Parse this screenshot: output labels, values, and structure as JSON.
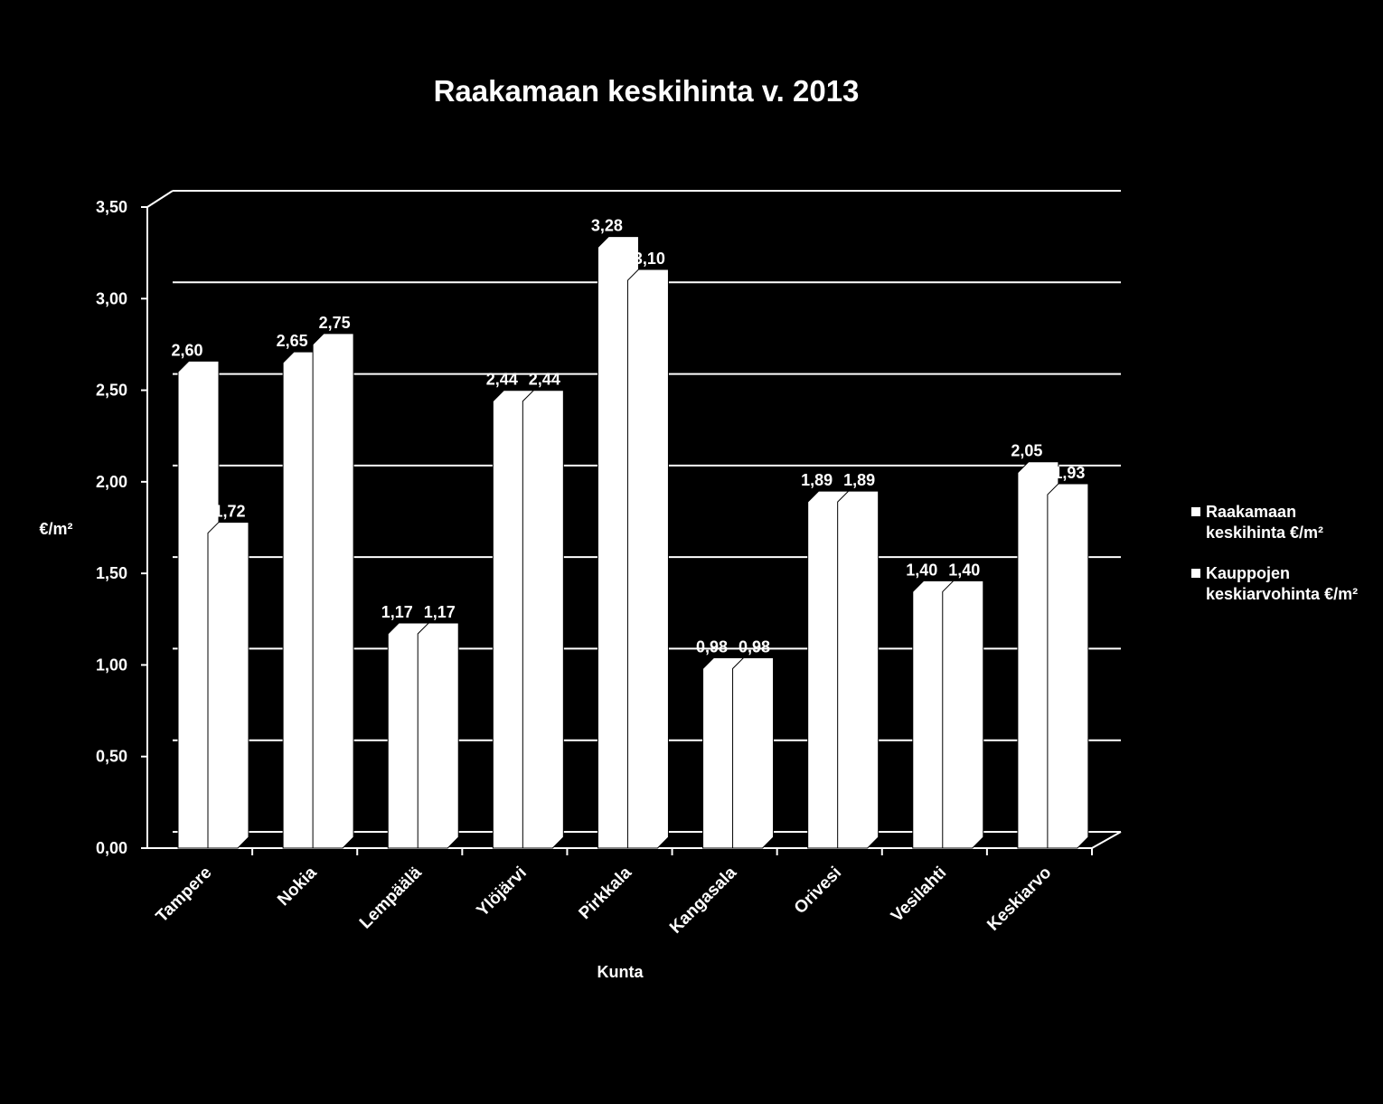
{
  "chart_data": {
    "type": "bar",
    "title": "Raakamaan keskihinta v. 2013",
    "xlabel": "Kunta",
    "ylabel": "€/m²",
    "categories": [
      "Tampere",
      "Nokia",
      "Lempäälä",
      "Ylöjärvi",
      "Pirkkala",
      "Kangasala",
      "Orivesi",
      "Vesilahti",
      "Keskiarvo"
    ],
    "series": [
      {
        "name": "Raakamaan keskihinta €/m²",
        "values": [
          2.6,
          2.65,
          1.17,
          2.44,
          3.28,
          0.98,
          1.89,
          1.4,
          2.05
        ],
        "labels": [
          "2,60",
          "2,65",
          "1,17",
          "2,44",
          "3,28",
          "0,98",
          "1,89",
          "1,40",
          "2,05"
        ]
      },
      {
        "name": "Kauppojen keskiarvohinta €/m²",
        "values": [
          1.72,
          2.75,
          1.17,
          2.44,
          3.1,
          0.98,
          1.89,
          1.4,
          1.93
        ],
        "labels": [
          "1,72",
          "2,75",
          "1,17",
          "2,44",
          "3,10",
          "0,98",
          "1,89",
          "1,40",
          "1,93"
        ]
      }
    ],
    "yticks": [
      "0,00",
      "0,50",
      "1,00",
      "1,50",
      "2,00",
      "2,50",
      "3,00",
      "3,50"
    ],
    "ylim": [
      0,
      3.5
    ],
    "grid": true,
    "legend": "right",
    "colors": {
      "background": "#000000",
      "bars": "#ffffff",
      "text": "#ffffff"
    }
  }
}
